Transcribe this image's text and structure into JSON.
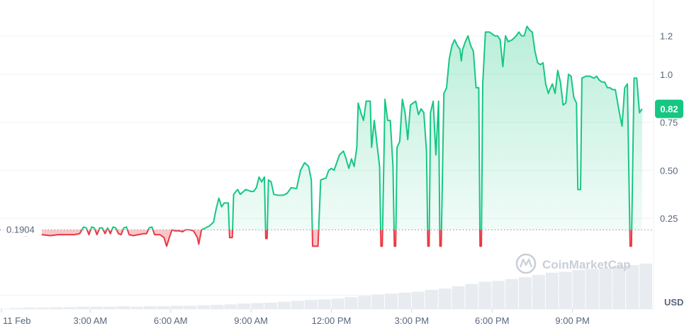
{
  "chart_data": {
    "type": "area",
    "baseline_value": 0.1904,
    "baseline_label": "0.1904",
    "current_value": 0.82,
    "current_label": "0.82",
    "currency_label": "USD",
    "watermark": "CoinMarketCap",
    "y_ticks": [
      {
        "value": 0.25,
        "label": "0.25"
      },
      {
        "value": 0.5,
        "label": "0.50"
      },
      {
        "value": 0.75,
        "label": "0.75"
      },
      {
        "value": 1.0,
        "label": "1.0"
      },
      {
        "value": 1.2,
        "label": "1.2"
      }
    ],
    "x_ticks": [
      {
        "t": 0,
        "label": "11 Feb"
      },
      {
        "t": 3,
        "label": "3:00 AM"
      },
      {
        "t": 6,
        "label": "6:00 AM"
      },
      {
        "t": 9,
        "label": "9:00 AM"
      },
      {
        "t": 12,
        "label": "12:00 PM"
      },
      {
        "t": 15,
        "label": "3:00 PM"
      },
      {
        "t": 18,
        "label": "6:00 PM"
      },
      {
        "t": 21,
        "label": "9:00 PM"
      }
    ],
    "ylim": [
      -0.2,
      1.35
    ],
    "xlim": [
      0,
      24
    ],
    "colors": {
      "up": "#16c784",
      "down": "#ea3943",
      "up_fill": "#16c784",
      "down_fill": "#ea3943",
      "grid": "#eff2f5",
      "volume": "#e8ebef",
      "badge": "#16c784"
    },
    "series": [
      {
        "values": [
          [
            0.0,
            0.16
          ],
          [
            0.3,
            0.165
          ],
          [
            0.6,
            0.16
          ],
          [
            0.9,
            0.165
          ],
          [
            1.2,
            0.165
          ],
          [
            1.5,
            0.16
          ],
          [
            1.8,
            0.165
          ],
          [
            2.1,
            0.165
          ],
          [
            2.4,
            0.165
          ],
          [
            2.6,
            0.17
          ],
          [
            2.75,
            0.205
          ],
          [
            2.85,
            0.2
          ],
          [
            2.95,
            0.165
          ],
          [
            3.05,
            0.205
          ],
          [
            3.15,
            0.2
          ],
          [
            3.25,
            0.165
          ],
          [
            3.35,
            0.2
          ],
          [
            3.45,
            0.2
          ],
          [
            3.55,
            0.17
          ],
          [
            3.65,
            0.2
          ],
          [
            3.75,
            0.17
          ],
          [
            3.85,
            0.205
          ],
          [
            3.95,
            0.2
          ],
          [
            4.05,
            0.17
          ],
          [
            4.15,
            0.165
          ],
          [
            4.25,
            0.2
          ],
          [
            4.35,
            0.205
          ],
          [
            4.45,
            0.165
          ],
          [
            4.6,
            0.16
          ],
          [
            4.8,
            0.165
          ],
          [
            5.0,
            0.17
          ],
          [
            5.1,
            0.17
          ],
          [
            5.2,
            0.2
          ],
          [
            5.3,
            0.205
          ],
          [
            5.4,
            0.165
          ],
          [
            5.6,
            0.165
          ],
          [
            5.75,
            0.15
          ],
          [
            5.85,
            0.105
          ],
          [
            5.95,
            0.15
          ],
          [
            6.05,
            0.19
          ],
          [
            6.15,
            0.185
          ],
          [
            6.3,
            0.185
          ],
          [
            6.45,
            0.18
          ],
          [
            6.55,
            0.19
          ],
          [
            6.7,
            0.19
          ],
          [
            6.85,
            0.185
          ],
          [
            7.0,
            0.15
          ],
          [
            7.05,
            0.115
          ],
          [
            7.15,
            0.19
          ],
          [
            7.3,
            0.2
          ],
          [
            7.45,
            0.21
          ],
          [
            7.6,
            0.23
          ],
          [
            7.7,
            0.3
          ],
          [
            7.8,
            0.355
          ],
          [
            7.9,
            0.31
          ],
          [
            8.0,
            0.33
          ],
          [
            8.15,
            0.33
          ],
          [
            8.2,
            0.15
          ],
          [
            8.3,
            0.15
          ],
          [
            8.35,
            0.375
          ],
          [
            8.5,
            0.4
          ],
          [
            8.6,
            0.375
          ],
          [
            8.8,
            0.4
          ],
          [
            9.0,
            0.39
          ],
          [
            9.1,
            0.39
          ],
          [
            9.2,
            0.41
          ],
          [
            9.3,
            0.465
          ],
          [
            9.4,
            0.44
          ],
          [
            9.5,
            0.465
          ],
          [
            9.55,
            0.145
          ],
          [
            9.6,
            0.145
          ],
          [
            9.65,
            0.45
          ],
          [
            9.75,
            0.44
          ],
          [
            9.85,
            0.375
          ],
          [
            10.0,
            0.37
          ],
          [
            10.2,
            0.37
          ],
          [
            10.35,
            0.38
          ],
          [
            10.5,
            0.41
          ],
          [
            10.7,
            0.405
          ],
          [
            10.85,
            0.5
          ],
          [
            11.0,
            0.54
          ],
          [
            11.15,
            0.52
          ],
          [
            11.25,
            0.45
          ],
          [
            11.3,
            0.105
          ],
          [
            11.5,
            0.105
          ],
          [
            11.6,
            0.45
          ],
          [
            11.8,
            0.46
          ],
          [
            11.9,
            0.5
          ],
          [
            12.0,
            0.51
          ],
          [
            12.1,
            0.5
          ],
          [
            12.2,
            0.54
          ],
          [
            12.3,
            0.58
          ],
          [
            12.45,
            0.6
          ],
          [
            12.55,
            0.56
          ],
          [
            12.65,
            0.51
          ],
          [
            12.75,
            0.56
          ],
          [
            12.85,
            0.52
          ],
          [
            12.95,
            0.62
          ],
          [
            13.0,
            0.85
          ],
          [
            13.1,
            0.8
          ],
          [
            13.2,
            0.76
          ],
          [
            13.3,
            0.86
          ],
          [
            13.45,
            0.86
          ],
          [
            13.5,
            0.62
          ],
          [
            13.6,
            0.76
          ],
          [
            13.7,
            0.64
          ],
          [
            13.8,
            0.52
          ],
          [
            13.85,
            0.105
          ],
          [
            13.9,
            0.105
          ],
          [
            14.0,
            0.87
          ],
          [
            14.1,
            0.76
          ],
          [
            14.2,
            0.76
          ],
          [
            14.3,
            0.52
          ],
          [
            14.35,
            0.105
          ],
          [
            14.4,
            0.105
          ],
          [
            14.45,
            0.62
          ],
          [
            14.55,
            0.65
          ],
          [
            14.65,
            0.87
          ],
          [
            14.75,
            0.8
          ],
          [
            14.85,
            0.66
          ],
          [
            14.95,
            0.84
          ],
          [
            15.05,
            0.85
          ],
          [
            15.15,
            0.86
          ],
          [
            15.25,
            0.79
          ],
          [
            15.35,
            0.82
          ],
          [
            15.45,
            0.8
          ],
          [
            15.55,
            0.6
          ],
          [
            15.6,
            0.105
          ],
          [
            15.65,
            0.105
          ],
          [
            15.7,
            0.8
          ],
          [
            15.8,
            0.86
          ],
          [
            15.9,
            0.58
          ],
          [
            16.0,
            0.86
          ],
          [
            16.05,
            0.105
          ],
          [
            16.1,
            0.105
          ],
          [
            16.2,
            0.9
          ],
          [
            16.3,
            0.93
          ],
          [
            16.4,
            1.08
          ],
          [
            16.5,
            1.15
          ],
          [
            16.6,
            1.18
          ],
          [
            16.7,
            1.15
          ],
          [
            16.8,
            1.13
          ],
          [
            16.85,
            1.07
          ],
          [
            16.9,
            1.13
          ],
          [
            17.0,
            1.17
          ],
          [
            17.1,
            1.2
          ],
          [
            17.2,
            1.15
          ],
          [
            17.3,
            1.12
          ],
          [
            17.4,
            0.93
          ],
          [
            17.5,
            0.93
          ],
          [
            17.55,
            0.105
          ],
          [
            17.6,
            0.105
          ],
          [
            17.65,
            0.95
          ],
          [
            17.75,
            1.22
          ],
          [
            17.9,
            1.22
          ],
          [
            18.1,
            1.2
          ],
          [
            18.2,
            1.2
          ],
          [
            18.3,
            1.18
          ],
          [
            18.4,
            1.04
          ],
          [
            18.5,
            1.2
          ],
          [
            18.6,
            1.17
          ],
          [
            18.75,
            1.18
          ],
          [
            18.9,
            1.2
          ],
          [
            19.0,
            1.22
          ],
          [
            19.1,
            1.2
          ],
          [
            19.2,
            1.2
          ],
          [
            19.3,
            1.25
          ],
          [
            19.4,
            1.23
          ],
          [
            19.5,
            1.22
          ],
          [
            19.6,
            1.12
          ],
          [
            19.7,
            1.06
          ],
          [
            19.8,
            1.05
          ],
          [
            19.9,
            1.06
          ],
          [
            20.0,
            0.95
          ],
          [
            20.1,
            0.9
          ],
          [
            20.15,
            0.92
          ],
          [
            20.25,
            0.95
          ],
          [
            20.35,
            0.9
          ],
          [
            20.45,
            1.02
          ],
          [
            20.55,
            0.96
          ],
          [
            20.65,
            0.84
          ],
          [
            20.75,
            0.85
          ],
          [
            20.85,
            1.0
          ],
          [
            20.95,
            0.99
          ],
          [
            21.05,
            0.88
          ],
          [
            21.15,
            0.85
          ],
          [
            21.2,
            0.4
          ],
          [
            21.3,
            0.4
          ],
          [
            21.35,
            0.98
          ],
          [
            21.5,
            0.99
          ],
          [
            21.65,
            0.99
          ],
          [
            21.8,
            0.98
          ],
          [
            21.9,
            0.99
          ],
          [
            22.0,
            0.97
          ],
          [
            22.1,
            0.96
          ],
          [
            22.2,
            0.96
          ],
          [
            22.3,
            0.93
          ],
          [
            22.4,
            0.93
          ],
          [
            22.5,
            0.92
          ],
          [
            22.6,
            0.92
          ],
          [
            22.75,
            0.8
          ],
          [
            22.85,
            0.73
          ],
          [
            22.95,
            0.93
          ],
          [
            23.05,
            0.95
          ],
          [
            23.15,
            0.105
          ],
          [
            23.2,
            0.105
          ],
          [
            23.3,
            0.98
          ],
          [
            23.4,
            0.98
          ],
          [
            23.5,
            0.8
          ],
          [
            23.6,
            0.82
          ]
        ]
      }
    ],
    "volume": [
      [
        0,
        0.02
      ],
      [
        0.5,
        0.03
      ],
      [
        1.0,
        0.03
      ],
      [
        1.5,
        0.04
      ],
      [
        2.0,
        0.04
      ],
      [
        2.5,
        0.05
      ],
      [
        3.0,
        0.05
      ],
      [
        3.5,
        0.05
      ],
      [
        4.0,
        0.06
      ],
      [
        4.5,
        0.05
      ],
      [
        5.0,
        0.06
      ],
      [
        5.5,
        0.06
      ],
      [
        6.0,
        0.07
      ],
      [
        6.5,
        0.07
      ],
      [
        7.0,
        0.08
      ],
      [
        7.5,
        0.09
      ],
      [
        8.0,
        0.1
      ],
      [
        8.5,
        0.12
      ],
      [
        9.0,
        0.13
      ],
      [
        9.5,
        0.14
      ],
      [
        10.0,
        0.16
      ],
      [
        10.5,
        0.18
      ],
      [
        11.0,
        0.2
      ],
      [
        11.5,
        0.21
      ],
      [
        12.0,
        0.23
      ],
      [
        12.5,
        0.26
      ],
      [
        13.0,
        0.29
      ],
      [
        13.5,
        0.32
      ],
      [
        14.0,
        0.34
      ],
      [
        14.5,
        0.36
      ],
      [
        15.0,
        0.38
      ],
      [
        15.5,
        0.42
      ],
      [
        16.0,
        0.45
      ],
      [
        16.5,
        0.5
      ],
      [
        17.0,
        0.55
      ],
      [
        17.5,
        0.6
      ],
      [
        18.0,
        0.62
      ],
      [
        18.5,
        0.66
      ],
      [
        19.0,
        0.7
      ],
      [
        19.5,
        0.75
      ],
      [
        20.0,
        0.8
      ],
      [
        20.5,
        0.82
      ],
      [
        21.0,
        0.86
      ],
      [
        21.5,
        0.88
      ],
      [
        22.0,
        0.9
      ],
      [
        22.5,
        0.95
      ],
      [
        23.0,
        0.97
      ],
      [
        23.5,
        1.0
      ]
    ]
  }
}
